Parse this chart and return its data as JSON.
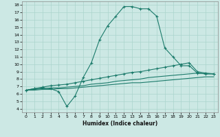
{
  "xlabel": "Humidex (Indice chaleur)",
  "bg_color": "#cce8e4",
  "grid_color": "#aad4cc",
  "line_color": "#1a7a6a",
  "xlim": [
    -0.5,
    23.5
  ],
  "ylim": [
    3.5,
    18.5
  ],
  "xticks": [
    0,
    1,
    2,
    3,
    4,
    5,
    6,
    7,
    8,
    9,
    10,
    11,
    12,
    13,
    14,
    15,
    16,
    17,
    18,
    19,
    20,
    21,
    22,
    23
  ],
  "yticks": [
    4,
    5,
    6,
    7,
    8,
    9,
    10,
    11,
    12,
    13,
    14,
    15,
    16,
    17,
    18
  ],
  "line1_x": [
    0,
    1,
    2,
    3,
    4,
    5,
    6,
    7,
    8,
    9,
    10,
    11,
    12,
    13,
    14,
    15,
    16,
    17,
    18,
    19,
    20,
    21,
    22,
    23
  ],
  "line1_y": [
    6.5,
    6.7,
    6.8,
    6.7,
    6.3,
    4.3,
    5.7,
    8.2,
    10.2,
    13.3,
    15.2,
    16.5,
    17.8,
    17.8,
    17.5,
    17.5,
    16.5,
    12.2,
    11.0,
    9.8,
    9.8,
    8.8,
    8.7,
    8.7
  ],
  "line2_x": [
    0,
    1,
    2,
    3,
    4,
    5,
    6,
    7,
    8,
    9,
    10,
    11,
    12,
    13,
    14,
    15,
    16,
    17,
    18,
    19,
    20,
    21,
    22,
    23
  ],
  "line2_y": [
    6.5,
    6.7,
    6.9,
    7.1,
    7.2,
    7.3,
    7.5,
    7.7,
    7.9,
    8.1,
    8.3,
    8.5,
    8.7,
    8.9,
    9.0,
    9.2,
    9.4,
    9.6,
    9.8,
    10.0,
    10.2,
    9.0,
    8.8,
    8.7
  ],
  "line3_x": [
    0,
    1,
    2,
    3,
    4,
    5,
    6,
    7,
    8,
    9,
    10,
    11,
    12,
    13,
    14,
    15,
    16,
    17,
    18,
    19,
    20,
    21,
    22,
    23
  ],
  "line3_y": [
    6.5,
    6.6,
    6.7,
    6.8,
    6.8,
    6.9,
    7.0,
    7.1,
    7.3,
    7.4,
    7.5,
    7.7,
    7.8,
    7.9,
    8.0,
    8.2,
    8.3,
    8.4,
    8.5,
    8.6,
    8.7,
    8.8,
    8.7,
    8.7
  ],
  "line4_x": [
    0,
    1,
    2,
    3,
    4,
    5,
    6,
    7,
    8,
    9,
    10,
    11,
    12,
    13,
    14,
    15,
    16,
    17,
    18,
    19,
    20,
    21,
    22,
    23
  ],
  "line4_y": [
    6.5,
    6.5,
    6.6,
    6.6,
    6.7,
    6.7,
    6.8,
    6.9,
    7.0,
    7.1,
    7.2,
    7.3,
    7.4,
    7.5,
    7.5,
    7.6,
    7.7,
    7.8,
    7.9,
    8.0,
    8.1,
    8.2,
    8.3,
    8.3
  ]
}
